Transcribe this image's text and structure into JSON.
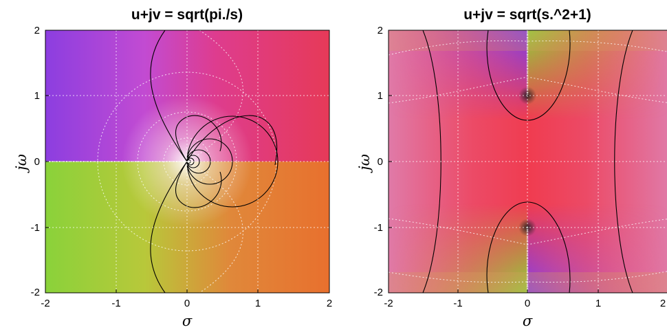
{
  "chart_data": [
    {
      "type": "heatmap",
      "title": "u+jv = sqrt(pi./s)",
      "xlabel": "σ",
      "ylabel": "jω",
      "xlim": [
        -2,
        2
      ],
      "ylim": [
        -2,
        2
      ],
      "x_ticks": [
        "-2",
        "-1",
        "0",
        "1",
        "2"
      ],
      "y_ticks": [
        "-2",
        "-1",
        "0",
        "1",
        "2"
      ],
      "grid": true,
      "function": "sqrt(pi./s)",
      "colors": {
        "violet": "#8a3fe0",
        "green": "#8ad43a",
        "red": "#e83c5a",
        "orange": "#e8782e",
        "magenta": "#d8409a"
      }
    },
    {
      "type": "heatmap",
      "title": "u+jv = sqrt(s.^2+1)",
      "xlabel": "σ",
      "ylabel": "jω",
      "xlim": [
        -2,
        2
      ],
      "ylim": [
        -2,
        2
      ],
      "x_ticks": [
        "-2",
        "-1",
        "0",
        "1",
        "2"
      ],
      "y_ticks": [
        "-2",
        "-1",
        "0",
        "1",
        "2"
      ],
      "grid": true,
      "function": "sqrt(s.^2+1)",
      "colors": {
        "violet": "#8a3fe0",
        "green": "#8ad43a",
        "red": "#ec3c52",
        "pink": "#e0609a",
        "tan": "#d8a060"
      }
    }
  ]
}
